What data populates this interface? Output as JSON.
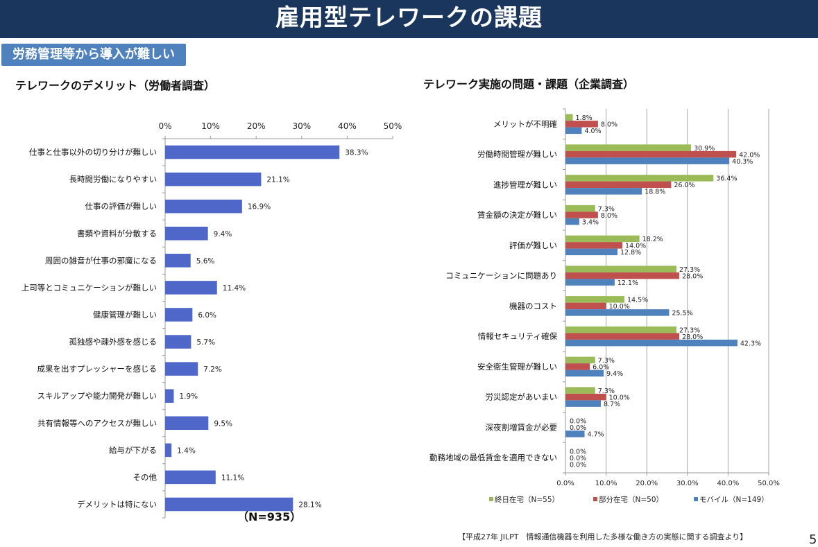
{
  "header": {
    "title": "雇用型テレワークの課題"
  },
  "subtitle": "労務管理等から導入が難しい",
  "footer": {
    "source": "【平成27年 JILPT　情報通信機器を利用した多様な働き方の実態に関する調査より】",
    "page_number": "5"
  },
  "chart_data": [
    {
      "type": "bar",
      "orientation": "horizontal",
      "title": "テレワークのデメリット（労働者調査）",
      "note": "（N=935）",
      "categories": [
        "仕事と仕事以外の切り分けが難しい",
        "長時間労働になりやすい",
        "仕事の評価が難しい",
        "書類や資料が分散する",
        "周囲の雑音が仕事の邪魔になる",
        "上司等とコミュニケーションが難しい",
        "健康管理が難しい",
        "孤独感や疎外感を感じる",
        "成果を出すプレッシャーを感じる",
        "スキルアップや能力開発が難しい",
        "共有情報等へのアクセスが難しい",
        "給与が下がる",
        "その他",
        "デメリットは特にない"
      ],
      "values": [
        38.3,
        21.1,
        16.9,
        9.4,
        5.6,
        11.4,
        6.0,
        5.7,
        7.2,
        1.9,
        9.5,
        1.4,
        11.1,
        28.1
      ],
      "data_labels": [
        "38.3%",
        "21.1%",
        "16.9%",
        "9.4%",
        "5.6%",
        "11.4%",
        "6.0%",
        "5.7%",
        "7.2%",
        "1.9%",
        "9.5%",
        "1.4%",
        "11.1%",
        "28.1%"
      ],
      "xlim": [
        0,
        50
      ],
      "x_ticks": [
        "0%",
        "10%",
        "20%",
        "30%",
        "40%",
        "50%"
      ],
      "x_axis_position": "top",
      "grid": false,
      "color": "#4f67c8"
    },
    {
      "type": "bar",
      "orientation": "horizontal",
      "title": "テレワーク実施の問題・課題（企業調査）",
      "categories": [
        "メリットが不明確",
        "労働時間管理が難しい",
        "進捗管理が難しい",
        "賃金額の決定が難しい",
        "評価が難しい",
        "コミュニケーションに問題あり",
        "機器のコスト",
        "情報セキュリティ確保",
        "安全衛生管理が難しい",
        "労災認定があいまい",
        "深夜割増賃金が必要",
        "勤務地域の最低賃金を適用できない"
      ],
      "series": [
        {
          "name": "終日在宅（N=55）",
          "color": "#9bbb59",
          "values": [
            1.8,
            30.9,
            36.4,
            7.3,
            18.2,
            27.3,
            14.5,
            27.3,
            7.3,
            7.3,
            0.0,
            0.0
          ]
        },
        {
          "name": "部分在宅（N=50）",
          "color": "#c0504d",
          "values": [
            8.0,
            42.0,
            26.0,
            8.0,
            14.0,
            28.0,
            10.0,
            28.0,
            6.0,
            10.0,
            0.0,
            0.0
          ]
        },
        {
          "name": "モバイル（N=149）",
          "color": "#4f81bd",
          "values": [
            4.0,
            40.3,
            18.8,
            3.4,
            12.8,
            12.1,
            25.5,
            42.3,
            9.4,
            8.7,
            4.7,
            0.0
          ]
        }
      ],
      "xlim": [
        0,
        50
      ],
      "x_ticks": [
        "0.0%",
        "10.0%",
        "20.0%",
        "30.0%",
        "40.0%",
        "50.0%"
      ],
      "x_axis_position": "bottom",
      "grid": true,
      "legend": "bottom"
    }
  ]
}
